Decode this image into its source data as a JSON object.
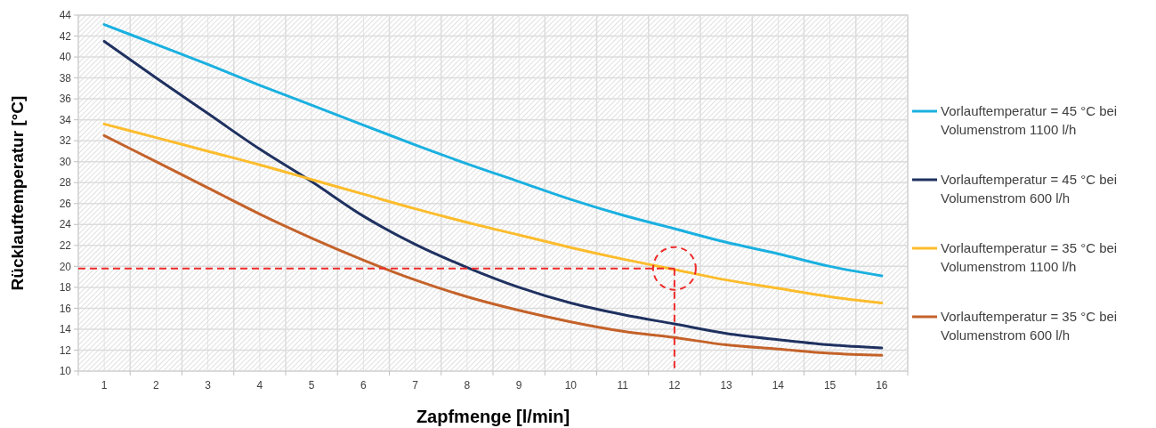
{
  "chart_data": {
    "type": "line",
    "xlabel": "Zapfmenge [l/min]",
    "ylabel": "Rücklauftemperatur [°C]",
    "x": [
      1,
      2,
      3,
      4,
      5,
      6,
      7,
      8,
      9,
      10,
      11,
      12,
      13,
      14,
      15,
      16
    ],
    "xlim": [
      0.5,
      16.5
    ],
    "xticks": [
      1,
      2,
      3,
      4,
      5,
      6,
      7,
      8,
      9,
      10,
      11,
      12,
      13,
      14,
      15,
      16
    ],
    "ylim": [
      10,
      44
    ],
    "yticks": [
      10,
      12,
      14,
      16,
      18,
      20,
      22,
      24,
      26,
      28,
      30,
      32,
      34,
      36,
      38,
      40,
      42,
      44
    ],
    "grid": true,
    "legend": "right",
    "line_style": "solid",
    "marker": "none",
    "series": [
      {
        "name": "Vorlauftemperatur = 45 °C bei Volumenstrom 1100 l/h",
        "color": "#1ab0e0",
        "values": [
          43.1,
          41.2,
          39.3,
          37.3,
          35.4,
          33.5,
          31.6,
          29.8,
          28.1,
          26.4,
          24.9,
          23.6,
          22.3,
          21.2,
          20.0,
          19.1
        ]
      },
      {
        "name": "Vorlauftemperatur = 45 °C bei Volumenstrom 600 l/h",
        "color": "#1f3160",
        "values": [
          41.5,
          38,
          34.6,
          31.2,
          28.1,
          24.8,
          22.1,
          19.9,
          18,
          16.5,
          15.4,
          14.5,
          13.6,
          13,
          12.5,
          12.2
        ]
      },
      {
        "name": "Vorlauftemperatur = 35 °C bei Volumenstrom 1100 l/h",
        "color": "#fcbc2c",
        "values": [
          33.6,
          32.3,
          31,
          29.7,
          28.3,
          26.9,
          25.5,
          24.2,
          23,
          21.8,
          20.7,
          19.7,
          18.7,
          17.9,
          17.1,
          16.5
        ]
      },
      {
        "name": "Vorlauftemperatur = 35 °C bei Volumenstrom 600 l/h",
        "color": "#c4622a",
        "values": [
          32.5,
          30,
          27.5,
          25,
          22.7,
          20.6,
          18.7,
          17.1,
          15.8,
          14.7,
          13.8,
          13.2,
          12.5,
          12.1,
          11.7,
          11.5
        ]
      }
    ],
    "ref_lines": [
      {
        "axis": "y",
        "value": 19.8,
        "color": "#ee2a2a",
        "line_style": "dashed"
      },
      {
        "axis": "x",
        "value": 12,
        "color": "#ee2a2a",
        "line_style": "dashed"
      }
    ]
  }
}
